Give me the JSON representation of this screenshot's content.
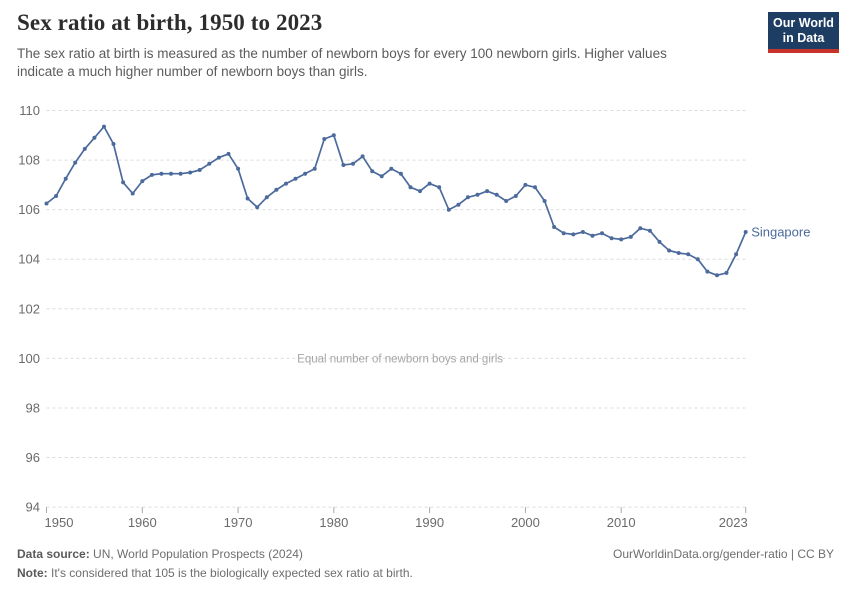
{
  "header": {
    "title": "Sex ratio at birth, 1950 to 2023",
    "subtitle_line1": "The sex ratio at birth is measured as the number of newborn boys for every 100 newborn girls. Higher values",
    "subtitle_line2": "indicate a much higher number of newborn boys than girls."
  },
  "logo": {
    "line1": "Our World",
    "line2": "in Data",
    "bg_color": "#1d3d63",
    "accent_color": "#c5332a"
  },
  "chart_data": {
    "type": "line",
    "title": "Sex ratio at birth, 1950 to 2023",
    "entity_label": "Singapore",
    "line_color": "#4c6a9c",
    "gridline_color": "#dcdcdc",
    "tick_label_color": "#6b6b6b",
    "annotation_color": "#a6a6a6",
    "xlim": [
      1950,
      2023
    ],
    "ylim": [
      94,
      110
    ],
    "grid": "dashed-horizontal",
    "legend_position": "end-of-line-label",
    "yticks": [
      94,
      96,
      98,
      100,
      102,
      104,
      106,
      108,
      110
    ],
    "xticks": [
      1950,
      1960,
      1970,
      1980,
      1990,
      2000,
      2010,
      2023
    ],
    "annotation": {
      "text": "Equal number of newborn boys and girls",
      "y": 100
    },
    "x": [
      1950,
      1951,
      1952,
      1953,
      1954,
      1955,
      1956,
      1957,
      1958,
      1959,
      1960,
      1961,
      1962,
      1963,
      1964,
      1965,
      1966,
      1967,
      1968,
      1969,
      1970,
      1971,
      1972,
      1973,
      1974,
      1975,
      1976,
      1977,
      1978,
      1979,
      1980,
      1981,
      1982,
      1983,
      1984,
      1985,
      1986,
      1987,
      1988,
      1989,
      1990,
      1991,
      1992,
      1993,
      1994,
      1995,
      1996,
      1997,
      1998,
      1999,
      2000,
      2001,
      2002,
      2003,
      2004,
      2005,
      2006,
      2007,
      2008,
      2009,
      2010,
      2011,
      2012,
      2013,
      2014,
      2015,
      2016,
      2017,
      2018,
      2019,
      2020,
      2021,
      2022,
      2023
    ],
    "series": [
      {
        "name": "Singapore",
        "values": [
          106.25,
          106.55,
          107.25,
          107.9,
          108.45,
          108.9,
          109.35,
          108.65,
          107.1,
          106.65,
          107.15,
          107.4,
          107.45,
          107.45,
          107.45,
          107.5,
          107.6,
          107.85,
          108.1,
          108.25,
          107.65,
          106.45,
          106.1,
          106.5,
          106.8,
          107.05,
          107.25,
          107.45,
          107.65,
          108.85,
          109.0,
          107.8,
          107.85,
          108.15,
          107.55,
          107.35,
          107.65,
          107.45,
          106.9,
          106.75,
          107.05,
          106.9,
          106.0,
          106.2,
          106.5,
          106.6,
          106.75,
          106.6,
          106.35,
          106.55,
          107.0,
          106.9,
          106.35,
          105.3,
          105.05,
          105.0,
          105.1,
          104.95,
          105.05,
          104.85,
          104.8,
          104.9,
          105.25,
          105.15,
          104.7,
          104.35,
          104.25,
          104.2,
          104.0,
          103.5,
          103.35,
          103.45,
          104.2,
          105.1
        ]
      }
    ]
  },
  "footer": {
    "datasource_label": "Data source:",
    "datasource_text": " UN, World Population Prospects (2024)",
    "link_text": "OurWorldinData.org/gender-ratio | CC BY",
    "note_label": "Note:",
    "note_text": " It's considered that 105 is the biologically expected sex ratio at birth."
  }
}
